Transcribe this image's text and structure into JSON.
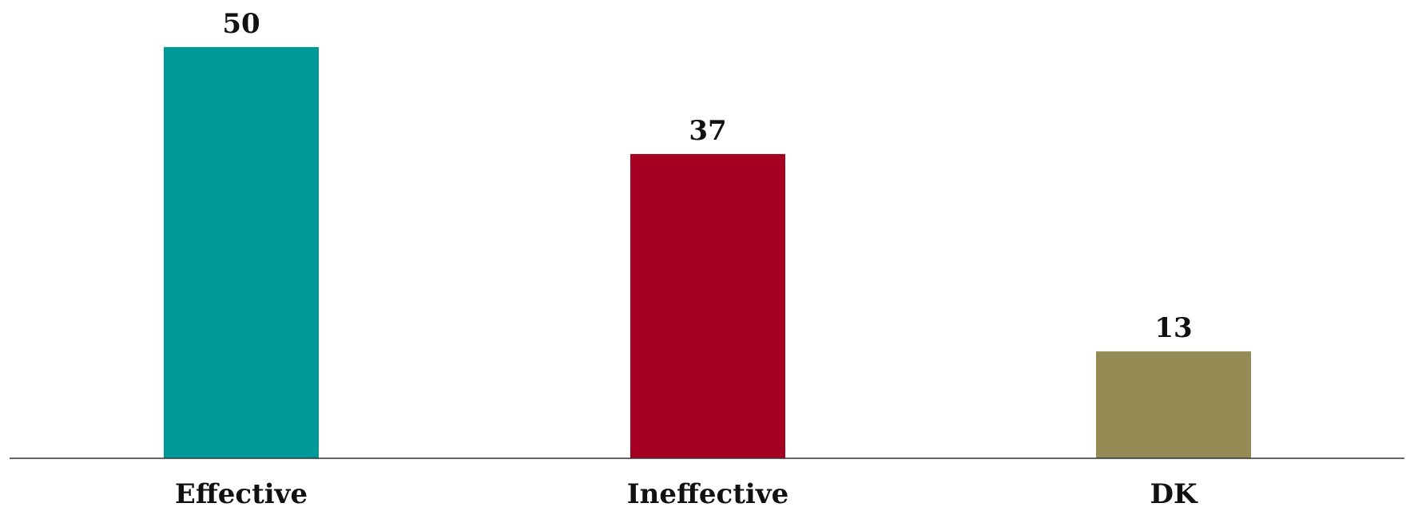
{
  "chart_data": {
    "type": "bar",
    "categories": [
      "Effective",
      "Ineffective",
      "DK"
    ],
    "values": [
      50,
      37,
      13
    ],
    "data_labels": [
      "50",
      "37",
      "13"
    ],
    "colors": [
      "#009999",
      "#A50021",
      "#958B54"
    ],
    "axis_color": "#333333",
    "title": "",
    "xlabel": "",
    "ylabel": "",
    "ylim": [
      0,
      50
    ],
    "grid": false,
    "legend": "none"
  }
}
